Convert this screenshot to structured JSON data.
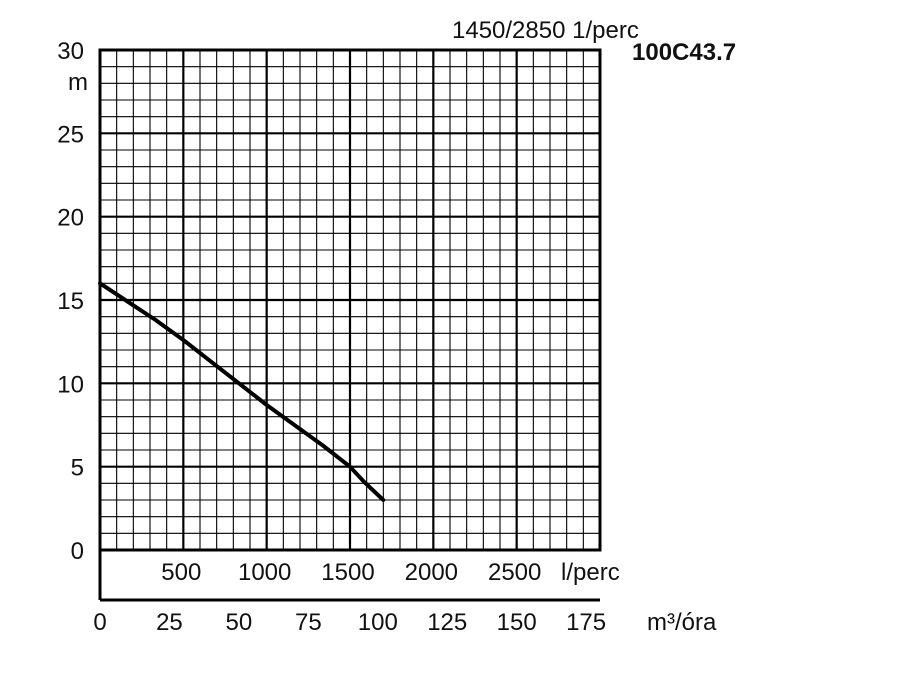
{
  "chart_data": {
    "type": "line",
    "header_label": "1450/2850  1/perc",
    "model_label": "100C43.7",
    "y_unit_label": "m",
    "y_axis": {
      "min": 0,
      "max": 30,
      "ticks": [
        "0",
        "5",
        "10",
        "15",
        "20",
        "25",
        "30"
      ]
    },
    "x_axis_lpm": {
      "min": 0,
      "max": 3000,
      "ticks": [
        {
          "value": 500,
          "label": "500"
        },
        {
          "value": 1000,
          "label": "1000"
        },
        {
          "value": 1500,
          "label": "1500"
        },
        {
          "value": 2000,
          "label": "2000"
        },
        {
          "value": 2500,
          "label": "2500"
        }
      ],
      "unit_label": "l/perc"
    },
    "x_axis_m3h": {
      "min": 0,
      "max": 180,
      "ticks": [
        {
          "value": 0,
          "label": "0"
        },
        {
          "value": 25,
          "label": "25"
        },
        {
          "value": 50,
          "label": "50"
        },
        {
          "value": 75,
          "label": "75"
        },
        {
          "value": 100,
          "label": "100"
        },
        {
          "value": 125,
          "label": "125"
        },
        {
          "value": 150,
          "label": "150"
        },
        {
          "value": 175,
          "label": "175"
        }
      ],
      "unit_label": "m³/óra"
    },
    "grid": true,
    "series": [
      {
        "color": "#000000",
        "x_m3h": [
          0,
          10,
          20,
          30,
          40,
          50,
          60,
          70,
          80,
          90,
          95,
          102
        ],
        "y_m": [
          16.0,
          14.9,
          13.8,
          12.6,
          11.3,
          10.0,
          8.7,
          7.5,
          6.3,
          5.0,
          4.1,
          3.0
        ]
      }
    ]
  }
}
